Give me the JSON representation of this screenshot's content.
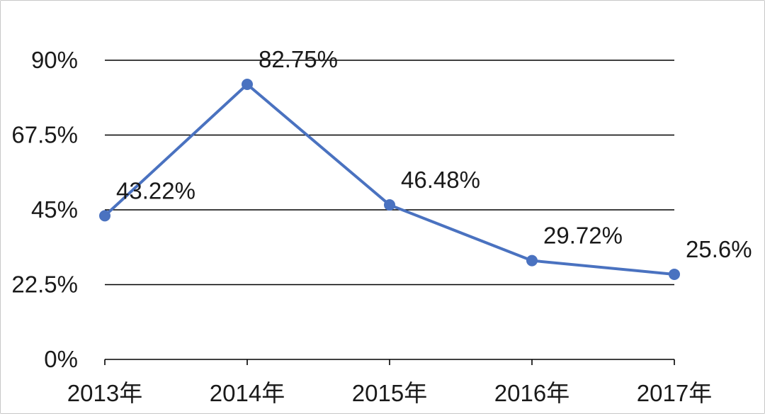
{
  "chart_data": {
    "type": "line",
    "categories": [
      "2013年",
      "2014年",
      "2015年",
      "2016年",
      "2017年"
    ],
    "series": [
      {
        "values": [
          43.22,
          82.75,
          46.48,
          29.72,
          25.6
        ],
        "labels": [
          "43.22%",
          "82.75%",
          "46.48%",
          "29.72%",
          "25.6%"
        ],
        "color": "#4a72c0"
      }
    ],
    "yticks": [
      0,
      22.5,
      45,
      67.5,
      90
    ],
    "ytick_labels": [
      "0%",
      "22.5%",
      "45%",
      "67.5%",
      "90%"
    ],
    "ylim": [
      0,
      90
    ],
    "grid": true,
    "title": "",
    "xlabel": "",
    "ylabel": ""
  }
}
